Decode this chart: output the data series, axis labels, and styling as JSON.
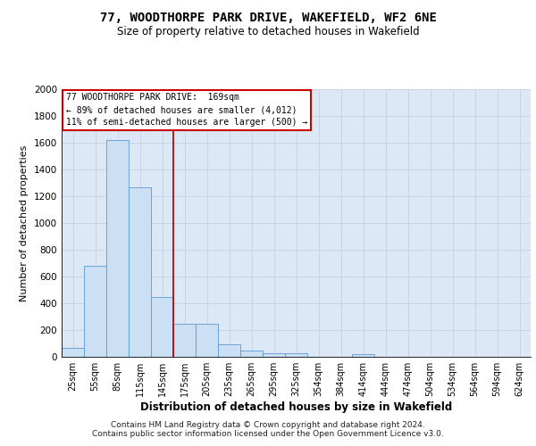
{
  "title_line1": "77, WOODTHORPE PARK DRIVE, WAKEFIELD, WF2 6NE",
  "title_line2": "Size of property relative to detached houses in Wakefield",
  "xlabel": "Distribution of detached houses by size in Wakefield",
  "ylabel": "Number of detached properties",
  "categories": [
    "25sqm",
    "55sqm",
    "85sqm",
    "115sqm",
    "145sqm",
    "175sqm",
    "205sqm",
    "235sqm",
    "265sqm",
    "295sqm",
    "325sqm",
    "354sqm",
    "384sqm",
    "414sqm",
    "444sqm",
    "474sqm",
    "504sqm",
    "534sqm",
    "564sqm",
    "594sqm",
    "624sqm"
  ],
  "values": [
    65,
    680,
    1620,
    1270,
    450,
    245,
    245,
    95,
    50,
    30,
    25,
    0,
    0,
    20,
    0,
    0,
    0,
    0,
    0,
    0,
    0
  ],
  "bar_color": "#cce0f5",
  "bar_edge_color": "#5b9bd5",
  "vline_color": "#cc0000",
  "vline_x": 4.5,
  "ylim": [
    0,
    2000
  ],
  "yticks": [
    0,
    200,
    400,
    600,
    800,
    1000,
    1200,
    1400,
    1600,
    1800,
    2000
  ],
  "grid_color": "#c8d4e4",
  "bg_color": "#dce8f5",
  "annotation_line1": "77 WOODTHORPE PARK DRIVE:  169sqm",
  "annotation_line2": "← 89% of detached houses are smaller (4,012)",
  "annotation_line3": "11% of semi-detached houses are larger (500) →",
  "footer_line1": "Contains HM Land Registry data © Crown copyright and database right 2024.",
  "footer_line2": "Contains public sector information licensed under the Open Government Licence v3.0."
}
